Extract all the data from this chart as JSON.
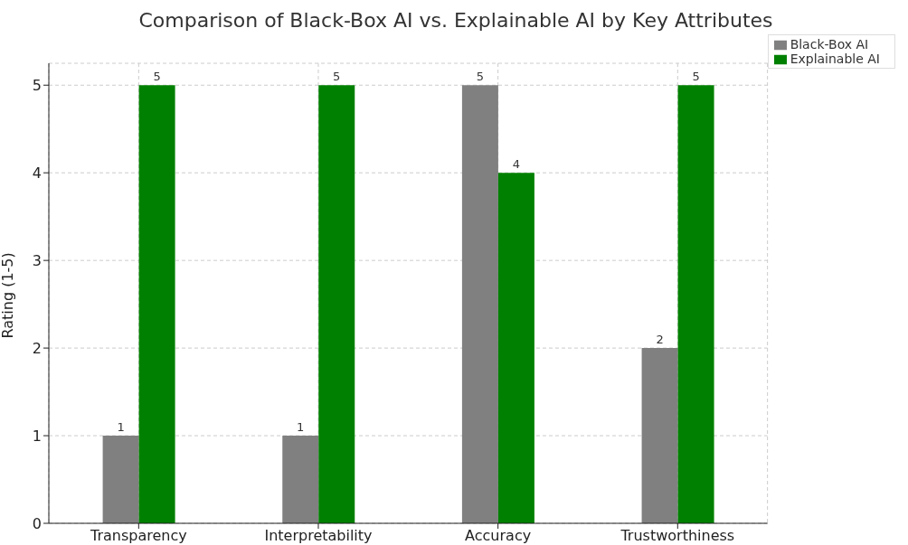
{
  "chart_data": {
    "type": "bar",
    "title": "Comparison of Black-Box AI vs. Explainable AI by Key Attributes",
    "ylabel": "Rating (1-5)",
    "categories": [
      "Transparency",
      "Interpretability",
      "Accuracy",
      "Trustworthiness"
    ],
    "series": [
      {
        "name": "Black-Box AI",
        "color": "#808080",
        "values": [
          1,
          1,
          5,
          2
        ]
      },
      {
        "name": "Explainable AI",
        "color": "#008000",
        "values": [
          5,
          5,
          4,
          5
        ]
      }
    ],
    "ylim": [
      0,
      5.25
    ],
    "yticks": [
      0,
      1,
      2,
      3,
      4,
      5
    ],
    "grid": true,
    "legend": "top right",
    "data_labels": true
  }
}
